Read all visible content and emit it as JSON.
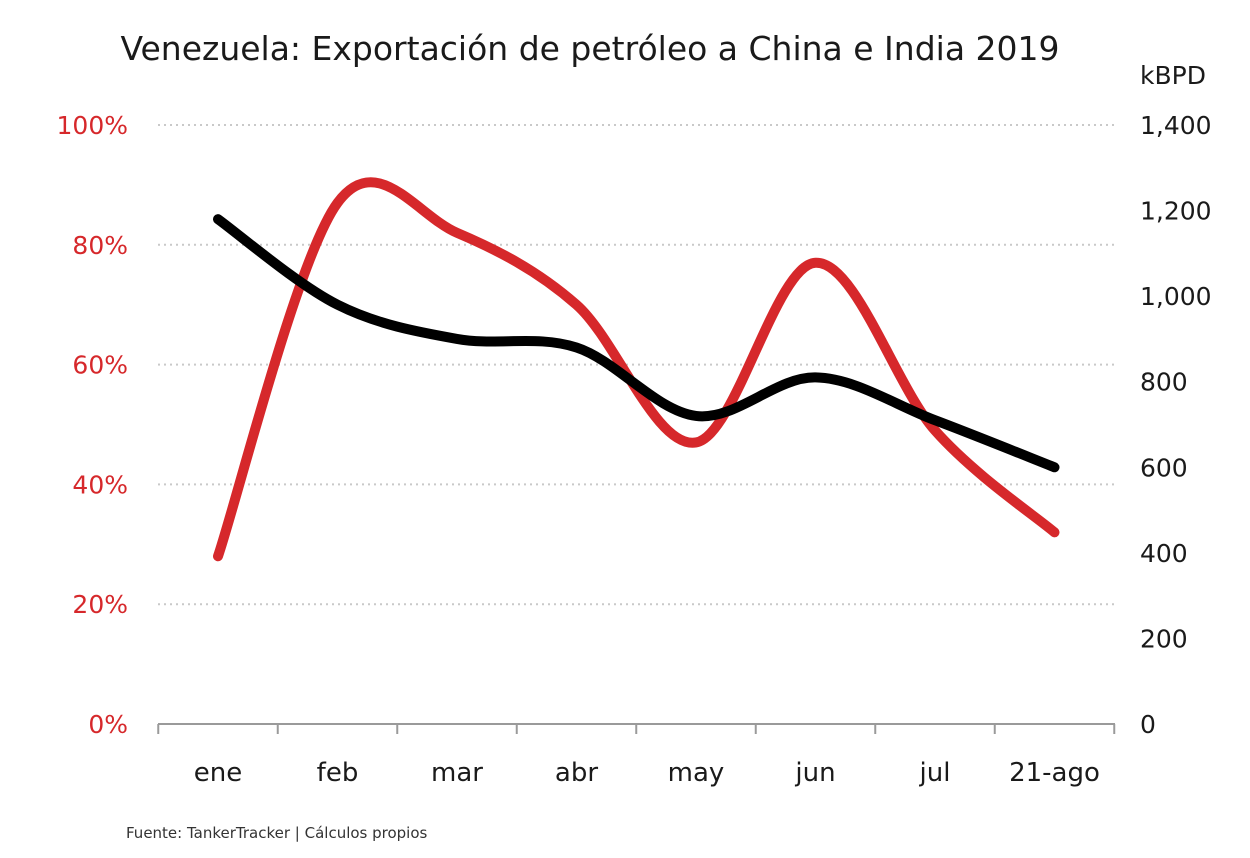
{
  "source_note": "Fuente: TankerTracker | Cálculos propios",
  "chart_data": {
    "type": "line",
    "title": "Venezuela: Exportación de petróleo a China e India 2019",
    "xlabel": "",
    "categories": [
      "ene",
      "feb",
      "mar",
      "abr",
      "may",
      "jun",
      "jul",
      "21-ago"
    ],
    "left_axis": {
      "ylabel": "",
      "ylim": [
        0,
        100
      ],
      "ticks": [
        0,
        20,
        40,
        60,
        80,
        100
      ],
      "tick_labels": [
        "0%",
        "20%",
        "40%",
        "60%",
        "80%",
        "100%"
      ],
      "color": "#d6282b"
    },
    "right_axis": {
      "ylabel": "kBPD",
      "ylim": [
        0,
        1400
      ],
      "ticks": [
        0,
        200,
        400,
        600,
        800,
        1000,
        1200,
        1400
      ],
      "tick_labels": [
        "0",
        "200",
        "400",
        "600",
        "800",
        "1,000",
        "1,200",
        "1,400"
      ],
      "color": "#1a1a1a"
    },
    "series": [
      {
        "axis": "left",
        "color": "#d6282b",
        "values": [
          28,
          87,
          82,
          70,
          47,
          77,
          49,
          32
        ]
      },
      {
        "axis": "right",
        "color": "#000000",
        "values": [
          1180,
          980,
          900,
          880,
          720,
          810,
          710,
          600
        ]
      }
    ],
    "grid": true,
    "legend": "none",
    "smooth": true
  }
}
